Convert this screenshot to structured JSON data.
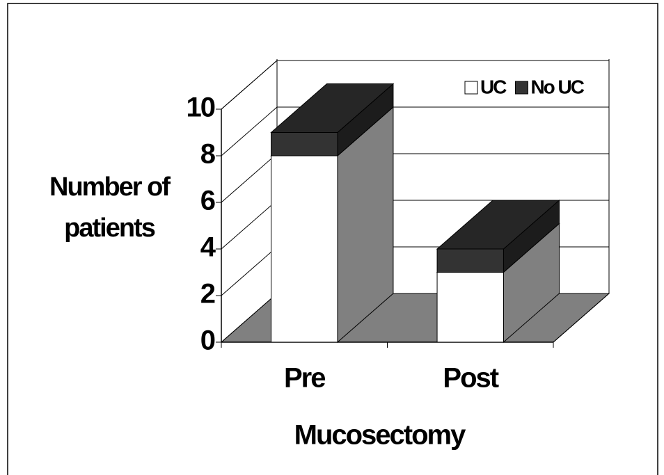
{
  "chart_data": {
    "type": "bar3d_stacked",
    "categories": [
      "Pre",
      "Post"
    ],
    "series": [
      {
        "name": "UC",
        "color": "#ffffff",
        "values": [
          8,
          3
        ]
      },
      {
        "name": "No UC",
        "color": "#333333",
        "values": [
          1,
          1
        ]
      }
    ],
    "xlabel": "Mucosectomy",
    "ylabel": "Number of patients",
    "ylim": [
      0,
      10
    ],
    "yticks": [
      0,
      2,
      4,
      6,
      8,
      10
    ],
    "grid": true,
    "legend": "top-right"
  }
}
